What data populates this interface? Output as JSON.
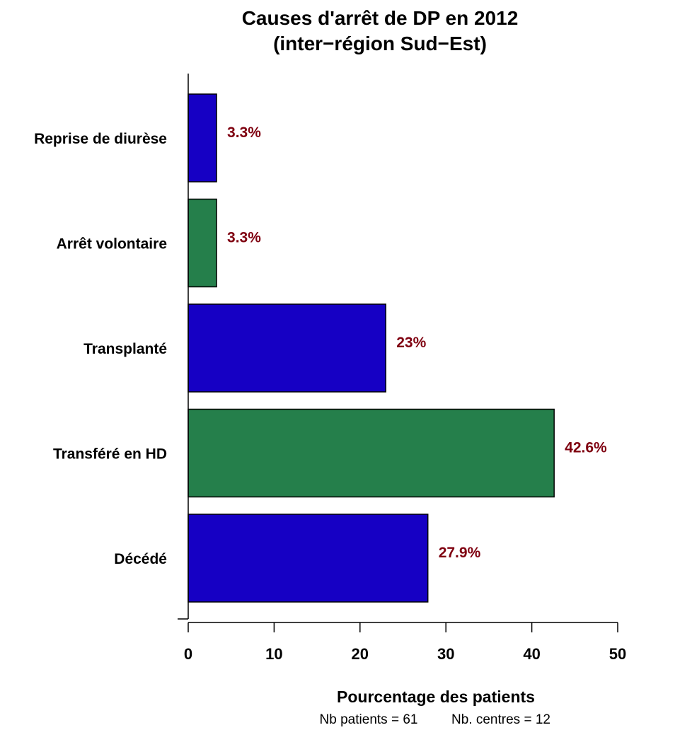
{
  "chart_data": {
    "type": "bar",
    "orientation": "horizontal",
    "title_line1": "Causes d'arrêt de DP en 2012",
    "title_line2": "(inter−région Sud−Est)",
    "xlabel": "Pourcentage des patients",
    "xlim": [
      0,
      50
    ],
    "xticks": [
      "0",
      "10",
      "20",
      "30",
      "40",
      "50"
    ],
    "categories": [
      "Reprise de diurèse",
      "Arrêt volontaire",
      "Transplanté",
      "Transféré en HD",
      "Décédé"
    ],
    "values": [
      3.3,
      3.3,
      23,
      42.6,
      27.9
    ],
    "value_labels": [
      "3.3%",
      "3.3%",
      "23%",
      "42.6%",
      "27.9%"
    ],
    "bar_colors": [
      "#1600c4",
      "#257f4b",
      "#1600c4",
      "#257f4b",
      "#1600c4"
    ],
    "value_label_color": "#7f0010",
    "footer": {
      "patients": "Nb patients =  61",
      "centres": "Nb. centres =  12"
    }
  }
}
